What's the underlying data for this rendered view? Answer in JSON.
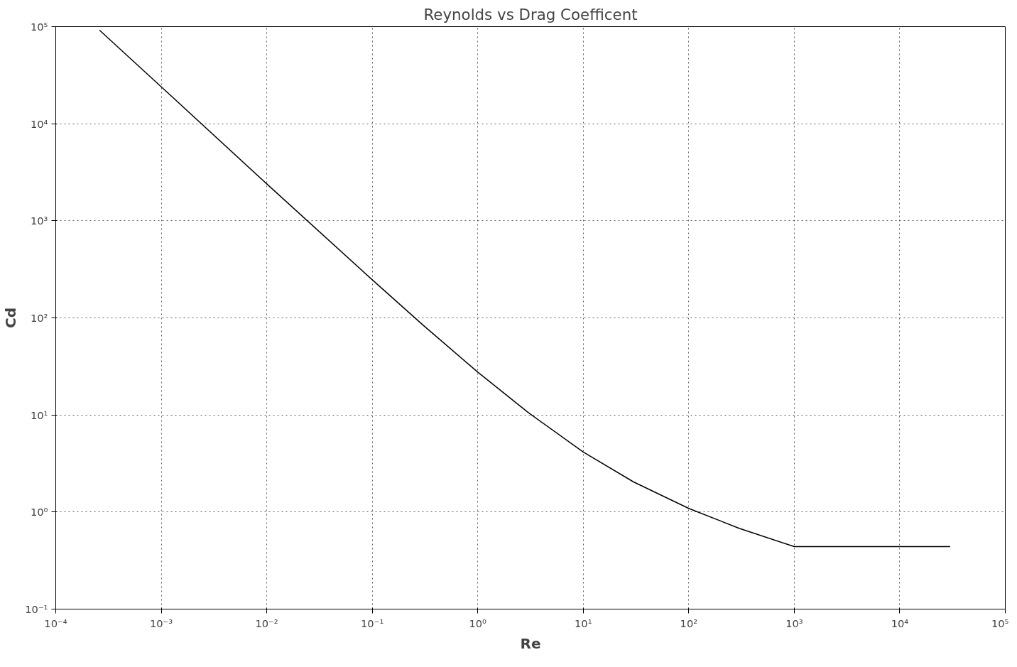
{
  "chart_data": {
    "type": "line",
    "title": "Reynolds vs Drag Coefficent",
    "xlabel": "Re",
    "ylabel": "Cd",
    "log": "xy",
    "grid": true,
    "line_style": "solid",
    "xlim": [
      0.0001,
      100000
    ],
    "ylim": [
      0.1,
      100000
    ],
    "xticks": [
      {
        "value": 0.0001,
        "label": "10⁻⁴"
      },
      {
        "value": 0.001,
        "label": "10⁻³"
      },
      {
        "value": 0.01,
        "label": "10⁻²"
      },
      {
        "value": 0.1,
        "label": "10⁻¹"
      },
      {
        "value": 1,
        "label": "10⁰"
      },
      {
        "value": 10,
        "label": "10¹"
      },
      {
        "value": 100,
        "label": "10²"
      },
      {
        "value": 1000,
        "label": "10³"
      },
      {
        "value": 10000,
        "label": "10⁴"
      },
      {
        "value": 100000,
        "label": "10⁵"
      }
    ],
    "yticks": [
      {
        "value": 0.1,
        "label": "10⁻¹"
      },
      {
        "value": 1,
        "label": "10⁰"
      },
      {
        "value": 10,
        "label": "10¹"
      },
      {
        "value": 100,
        "label": "10²"
      },
      {
        "value": 1000,
        "label": "10³"
      },
      {
        "value": 10000,
        "label": "10⁴"
      },
      {
        "value": 100000,
        "label": "10⁵"
      }
    ],
    "series": [
      {
        "color": "#000000",
        "x": [
          0.00026,
          0.001,
          0.01,
          0.1,
          0.3,
          1,
          3,
          10,
          30,
          100,
          300,
          1000,
          30000
        ],
        "values": [
          92000,
          24000,
          2400,
          247,
          85,
          27.6,
          10.6,
          4.15,
          2.04,
          1.09,
          0.68,
          0.44,
          0.44
        ]
      }
    ]
  }
}
